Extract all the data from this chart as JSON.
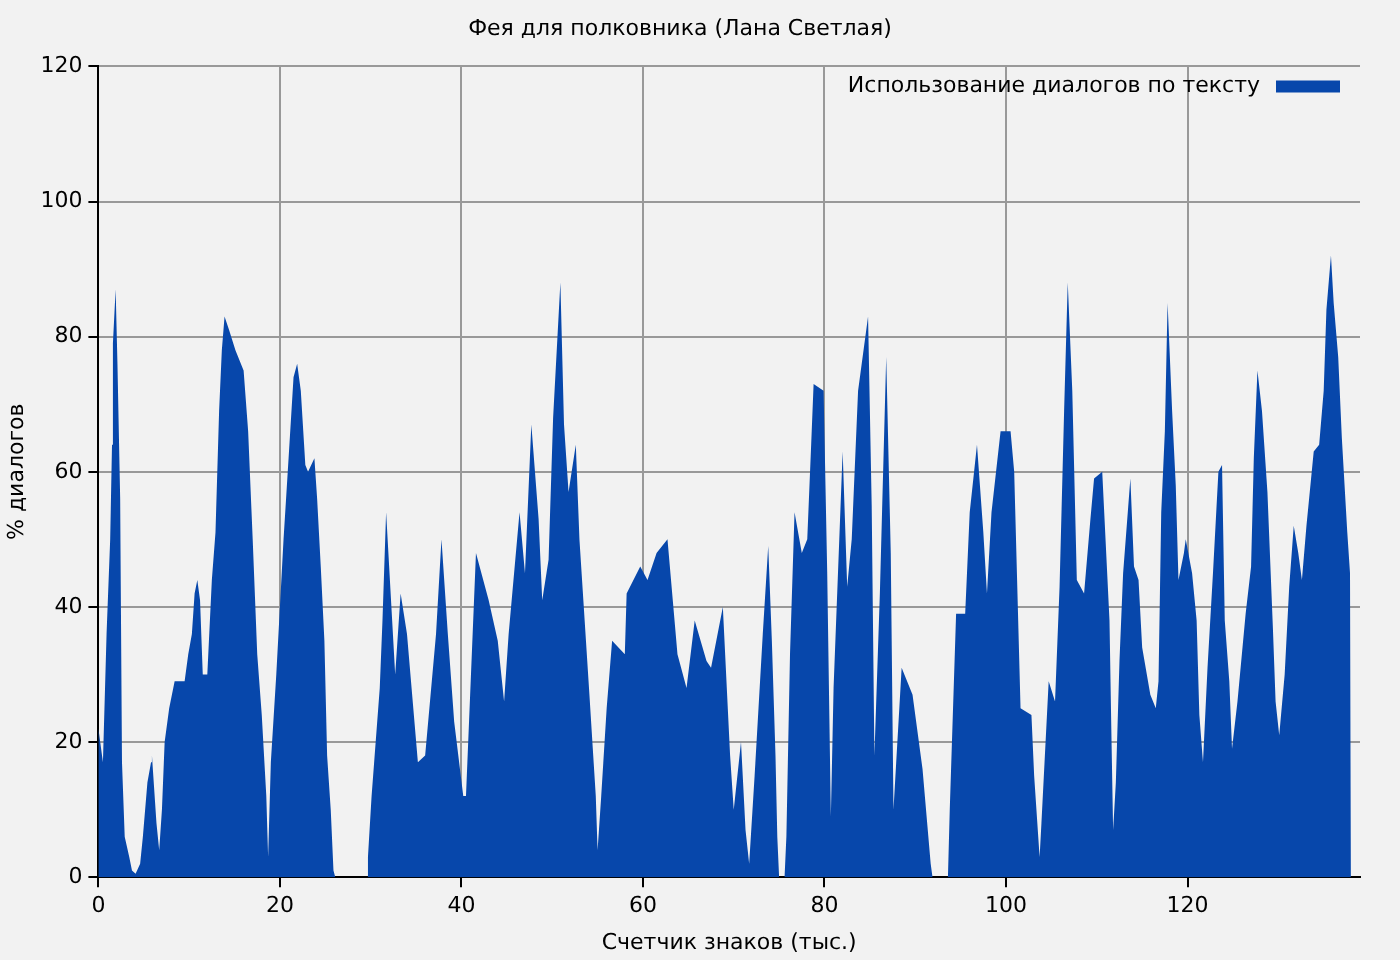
{
  "chart_data": {
    "type": "area",
    "title": "Фея для полковника (Лана Светлая)",
    "xlabel": "Счетчик знаков (тыс.)",
    "ylabel": "% диалогов",
    "xlim": [
      0,
      139
    ],
    "xticks": [
      0,
      20,
      40,
      60,
      80,
      100,
      120
    ],
    "ylim": [
      0,
      120
    ],
    "yticks": [
      0,
      20,
      40,
      60,
      80,
      100,
      120
    ],
    "grid": true,
    "legend": "top right",
    "marker": "none",
    "series": [
      {
        "name": "Использование диалогов по тексту",
        "color": "#0747ab",
        "x": [
          0,
          0.5,
          0.9,
          1.3,
          1.5,
          1.6,
          1.9,
          2.1,
          2.4,
          2.6,
          2.9,
          3.4,
          3.7,
          4.1,
          4.6,
          4.9,
          5.4,
          5.8,
          5.9,
          6.4,
          6.7,
          7.0,
          7.3,
          7.8,
          8.4,
          9.5,
          9.9,
          10.3,
          10.6,
          10.9,
          11.2,
          11.5,
          12.0,
          12.5,
          12.9,
          13.3,
          13.6,
          13.9,
          14.4,
          15.1,
          16.0,
          16.5,
          17.0,
          17.5,
          18.0,
          18.5,
          18.7,
          19.0,
          19.6,
          20.0,
          20.4,
          21.0,
          21.5,
          21.9,
          22.3,
          22.8,
          23.1,
          23.8,
          24.1,
          24.5,
          24.9,
          25.2,
          25.6,
          25.9,
          26.1,
          29.5,
          29.7,
          30.1,
          31.0,
          31.3,
          31.7,
          32.7,
          33.3,
          34.0,
          35.2,
          36.0,
          37.2,
          37.8,
          38.5,
          39.2,
          40.2,
          40.5,
          41.6,
          42.0,
          43.0,
          44.0,
          44.7,
          45.2,
          46.4,
          47.0,
          47.7,
          48.5,
          48.9,
          49.6,
          50.1,
          50.9,
          51.3,
          51.8,
          52.6,
          53.0,
          54.1,
          54.8,
          55.0,
          55.4,
          56.0,
          56.6,
          58.0,
          58.2,
          59.7,
          60.5,
          61.5,
          62.7,
          63.8,
          64.8,
          65.7,
          67.0,
          67.5,
          68.8,
          69.6,
          70.0,
          70.8,
          71.3,
          71.7,
          72.3,
          73.2,
          73.8,
          74.2,
          74.6,
          74.8,
          75.0,
          75.6,
          75.8,
          76.2,
          76.7,
          77.5,
          78.1,
          78.5,
          78.8,
          79.9,
          80.3,
          80.7,
          81.0,
          82.0,
          82.5,
          83.0,
          83.7,
          84.8,
          85.2,
          85.5,
          86.1,
          86.8,
          87.3,
          87.6,
          88.5,
          89.7,
          90.8,
          91.7,
          91.9,
          93.6,
          93.8,
          94.5,
          95.5,
          96.0,
          96.8,
          97.5,
          97.9,
          98.4,
          99.4,
          100.5,
          100.9,
          101.6,
          102.8,
          103.1,
          103.7,
          103.9,
          104.7,
          105.4,
          105.9,
          106.4,
          106.8,
          107.3,
          107.8,
          108.6,
          109.3,
          109.7,
          110.6,
          111.4,
          111.6,
          111.8,
          112.1,
          112.5,
          112.9,
          113.7,
          114.1,
          114.6,
          115.0,
          115.9,
          116.5,
          116.8,
          117.1,
          117.5,
          117.8,
          118.3,
          118.7,
          119.0,
          119.6,
          119.8,
          120.5,
          121.0,
          121.3,
          121.7,
          122.2,
          122.8,
          123.4,
          123.8,
          124.1,
          124.6,
          124.9,
          125.5,
          126.4,
          127.0,
          127.3,
          127.7,
          128.2,
          128.8,
          129.4,
          129.7,
          130.1,
          130.7,
          131.2,
          131.7,
          132.2,
          132.6,
          133.1,
          133.9,
          134.5,
          135.0,
          135.3,
          135.8,
          136.1,
          136.6,
          137.0,
          137.6,
          137.9,
          138.0
        ],
        "values": [
          22,
          17,
          36,
          50,
          64,
          79,
          87,
          76,
          56,
          17,
          6,
          3,
          1,
          0.5,
          2,
          6,
          14,
          17,
          18,
          8,
          4,
          10,
          20,
          25,
          29,
          29,
          33,
          36,
          42,
          44,
          41,
          30,
          30,
          44,
          51,
          69,
          78,
          83,
          81,
          78,
          75,
          66,
          50,
          33,
          24,
          12,
          3,
          17,
          30,
          40,
          50,
          63,
          74,
          76,
          72,
          61,
          60,
          62,
          56,
          46,
          35,
          18,
          10,
          1,
          0,
          0,
          3,
          12,
          28,
          38,
          54,
          30,
          42,
          36,
          17,
          18,
          36,
          50,
          36,
          23,
          12,
          12,
          48,
          46,
          41,
          35,
          26,
          36,
          54,
          45,
          67,
          53,
          41,
          47,
          68,
          88,
          67,
          57,
          64,
          50,
          27,
          12,
          4,
          12,
          25,
          35,
          33,
          42,
          46,
          44,
          48,
          50,
          33,
          28,
          38,
          32,
          31,
          40,
          18,
          10,
          20,
          7,
          2,
          15,
          36,
          49,
          35,
          18,
          6,
          0,
          0,
          6,
          33,
          54,
          48,
          50,
          63,
          73,
          72,
          45,
          9,
          28,
          63,
          43,
          50,
          72,
          83,
          55,
          18,
          42,
          77,
          48,
          10,
          31,
          27,
          16,
          2,
          0,
          0,
          10,
          39,
          39,
          54,
          64,
          51,
          42,
          54,
          66,
          66,
          60,
          25,
          24,
          15,
          3,
          8,
          29,
          26,
          43,
          69,
          88,
          72,
          44,
          42,
          53,
          59,
          60,
          38,
          22,
          7,
          14,
          32,
          45,
          59,
          46,
          44,
          34,
          27,
          25,
          29,
          54,
          66,
          85,
          69,
          58,
          44,
          48,
          50,
          45,
          38,
          24,
          17,
          31,
          45,
          60,
          61,
          38,
          29,
          19,
          26,
          39,
          46,
          62,
          75,
          69,
          57,
          37,
          26,
          21,
          30,
          43,
          52,
          48,
          44,
          52,
          63,
          64,
          72,
          84,
          92,
          85,
          77,
          65,
          51,
          45,
          0
        ]
      }
    ]
  }
}
